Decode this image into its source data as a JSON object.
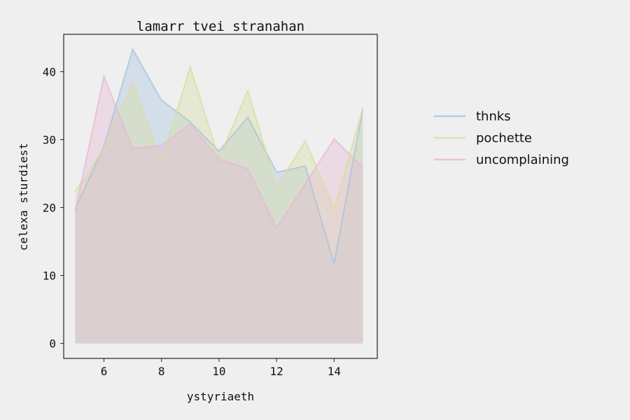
{
  "chart_data": {
    "type": "area",
    "title": "lamarr tvei stranahan",
    "xlabel": "ystyriaeth",
    "ylabel": "celexa sturdiest",
    "xlim": [
      4.6,
      15.5
    ],
    "ylim": [
      -2.2,
      45.5
    ],
    "xticks": [
      6,
      8,
      10,
      12,
      14
    ],
    "yticks": [
      0,
      10,
      20,
      30,
      40
    ],
    "grid": false,
    "legend_position": "right, outside plot",
    "x": [
      5,
      6,
      7,
      8,
      9,
      10,
      11,
      12,
      13,
      14,
      15
    ],
    "series": [
      {
        "name": "thnks",
        "color": "#a6c3de",
        "values": [
          19.8,
          29.0,
          43.3,
          35.8,
          32.6,
          28.3,
          33.3,
          25.2,
          26.1,
          11.8,
          34.6
        ]
      },
      {
        "name": "pochette",
        "color": "#d8dca0",
        "values": [
          22.3,
          28.7,
          38.3,
          26.7,
          40.7,
          27.2,
          37.2,
          23.0,
          29.8,
          19.8,
          34.6
        ]
      },
      {
        "name": "uncomplaining",
        "color": "#e6b8d2",
        "values": [
          19.4,
          39.3,
          28.7,
          29.1,
          32.3,
          27.1,
          25.7,
          17.0,
          23.5,
          30.1,
          25.9
        ]
      }
    ]
  }
}
